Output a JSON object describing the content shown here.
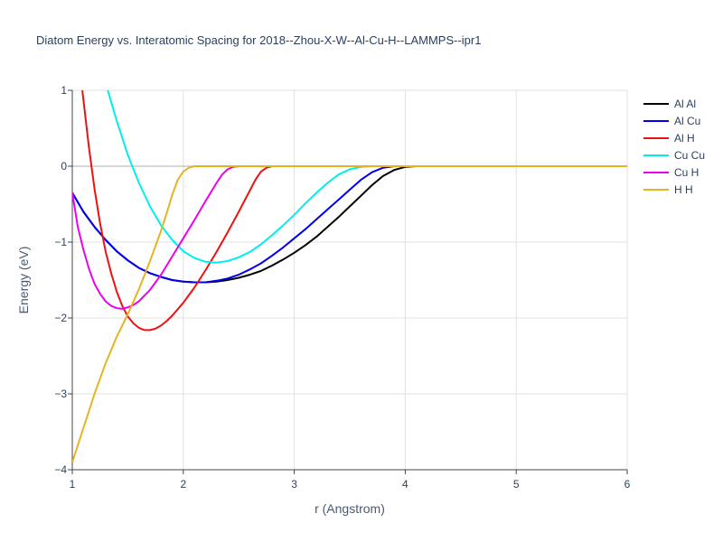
{
  "chart_data": {
    "type": "line",
    "title": "Diatom Energy vs. Interatomic Spacing for 2018--Zhou-X-W--Al-Cu-H--LAMMPS--ipr1",
    "xlabel": "r (Angstrom)",
    "ylabel": "Energy (eV)",
    "xlim": [
      1,
      6
    ],
    "ylim": [
      -4,
      1
    ],
    "xticks": [
      1,
      2,
      3,
      4,
      5,
      6
    ],
    "yticks": [
      1,
      0,
      -1,
      -2,
      -3,
      -4
    ],
    "ytick_labels": [
      "1",
      "0",
      "−1",
      "−2",
      "−3",
      "−4"
    ],
    "grid": true,
    "legend_position": "right",
    "series": [
      {
        "name": "Al Al",
        "color": "#000000",
        "x": [
          1.0,
          1.1,
          1.2,
          1.3,
          1.4,
          1.5,
          1.6,
          1.7,
          1.8,
          1.9,
          2.0,
          2.1,
          2.2,
          2.3,
          2.4,
          2.5,
          2.6,
          2.7,
          2.8,
          2.9,
          3.0,
          3.1,
          3.2,
          3.3,
          3.4,
          3.5,
          3.6,
          3.7,
          3.8,
          3.9,
          4.0,
          4.1,
          4.2,
          4.3,
          4.5,
          5.0,
          5.5,
          6.0
        ],
        "y": [
          -0.35,
          -0.6,
          -0.8,
          -0.97,
          -1.12,
          -1.24,
          -1.34,
          -1.41,
          -1.46,
          -1.5,
          -1.52,
          -1.53,
          -1.53,
          -1.52,
          -1.5,
          -1.47,
          -1.43,
          -1.38,
          -1.31,
          -1.23,
          -1.14,
          -1.04,
          -0.93,
          -0.8,
          -0.67,
          -0.53,
          -0.39,
          -0.25,
          -0.13,
          -0.05,
          -0.01,
          0.0,
          0.0,
          0.0,
          0.0,
          0.0,
          0.0,
          0.0
        ]
      },
      {
        "name": "Al Cu",
        "color": "#0000ee",
        "x": [
          1.0,
          1.1,
          1.2,
          1.3,
          1.4,
          1.5,
          1.6,
          1.7,
          1.8,
          1.9,
          2.0,
          2.1,
          2.2,
          2.3,
          2.4,
          2.5,
          2.6,
          2.7,
          2.8,
          2.9,
          3.0,
          3.1,
          3.2,
          3.3,
          3.4,
          3.5,
          3.6,
          3.7,
          3.8,
          3.9,
          4.0,
          4.5,
          5.0,
          5.5,
          6.0
        ],
        "y": [
          -0.35,
          -0.6,
          -0.8,
          -0.97,
          -1.12,
          -1.24,
          -1.34,
          -1.41,
          -1.46,
          -1.5,
          -1.52,
          -1.53,
          -1.53,
          -1.51,
          -1.48,
          -1.43,
          -1.36,
          -1.28,
          -1.18,
          -1.07,
          -0.95,
          -0.83,
          -0.7,
          -0.57,
          -0.44,
          -0.31,
          -0.18,
          -0.08,
          -0.02,
          0.0,
          0.0,
          0.0,
          0.0,
          0.0,
          0.0
        ]
      },
      {
        "name": "Al H",
        "color": "#ee1111",
        "x": [
          1.09,
          1.15,
          1.2,
          1.25,
          1.3,
          1.35,
          1.4,
          1.45,
          1.5,
          1.55,
          1.6,
          1.65,
          1.7,
          1.75,
          1.8,
          1.85,
          1.9,
          2.0,
          2.1,
          2.2,
          2.3,
          2.4,
          2.5,
          2.6,
          2.65,
          2.7,
          2.75,
          2.8,
          2.9,
          3.0,
          4.0,
          5.0,
          6.0
        ],
        "y": [
          1.0,
          0.25,
          -0.3,
          -0.75,
          -1.12,
          -1.41,
          -1.65,
          -1.84,
          -1.98,
          -2.07,
          -2.13,
          -2.16,
          -2.16,
          -2.14,
          -2.1,
          -2.04,
          -1.97,
          -1.8,
          -1.6,
          -1.37,
          -1.13,
          -0.87,
          -0.6,
          -0.32,
          -0.18,
          -0.07,
          -0.02,
          0.0,
          0.0,
          0.0,
          0.0,
          0.0,
          0.0
        ]
      },
      {
        "name": "Cu Cu",
        "color": "#00eeee",
        "x": [
          1.32,
          1.4,
          1.5,
          1.6,
          1.7,
          1.8,
          1.9,
          2.0,
          2.1,
          2.2,
          2.3,
          2.4,
          2.5,
          2.6,
          2.7,
          2.8,
          2.9,
          3.0,
          3.1,
          3.2,
          3.3,
          3.4,
          3.5,
          3.6,
          3.7,
          3.8,
          4.0,
          4.5,
          5.0,
          5.5,
          6.0
        ],
        "y": [
          1.0,
          0.6,
          0.15,
          -0.22,
          -0.53,
          -0.78,
          -0.97,
          -1.12,
          -1.21,
          -1.26,
          -1.27,
          -1.25,
          -1.2,
          -1.13,
          -1.03,
          -0.91,
          -0.78,
          -0.64,
          -0.49,
          -0.35,
          -0.22,
          -0.11,
          -0.04,
          -0.01,
          0.0,
          0.0,
          0.0,
          0.0,
          0.0,
          0.0,
          0.0
        ]
      },
      {
        "name": "Cu H",
        "color": "#ee00ee",
        "x": [
          1.0,
          1.05,
          1.1,
          1.15,
          1.2,
          1.25,
          1.3,
          1.35,
          1.4,
          1.45,
          1.5,
          1.55,
          1.6,
          1.7,
          1.8,
          1.9,
          2.0,
          2.1,
          2.2,
          2.3,
          2.35,
          2.4,
          2.45,
          2.5,
          2.6,
          3.0,
          4.0,
          5.0,
          6.0
        ],
        "y": [
          -0.35,
          -0.8,
          -1.1,
          -1.35,
          -1.55,
          -1.68,
          -1.78,
          -1.84,
          -1.87,
          -1.88,
          -1.86,
          -1.83,
          -1.78,
          -1.63,
          -1.43,
          -1.19,
          -0.95,
          -0.71,
          -0.46,
          -0.22,
          -0.11,
          -0.04,
          -0.01,
          0.0,
          0.0,
          0.0,
          0.0,
          0.0,
          0.0
        ]
      },
      {
        "name": "H H",
        "color": "#e6b422",
        "x": [
          1.0,
          1.1,
          1.2,
          1.3,
          1.4,
          1.5,
          1.6,
          1.7,
          1.8,
          1.85,
          1.9,
          1.95,
          2.0,
          2.05,
          2.1,
          2.15,
          2.2,
          3.0,
          4.0,
          5.0,
          6.0
        ],
        "y": [
          -3.9,
          -3.45,
          -3.0,
          -2.6,
          -2.25,
          -1.95,
          -1.62,
          -1.25,
          -0.85,
          -0.62,
          -0.38,
          -0.18,
          -0.07,
          -0.02,
          0.0,
          0.0,
          0.0,
          0.0,
          0.0,
          0.0,
          0.0
        ]
      }
    ]
  }
}
